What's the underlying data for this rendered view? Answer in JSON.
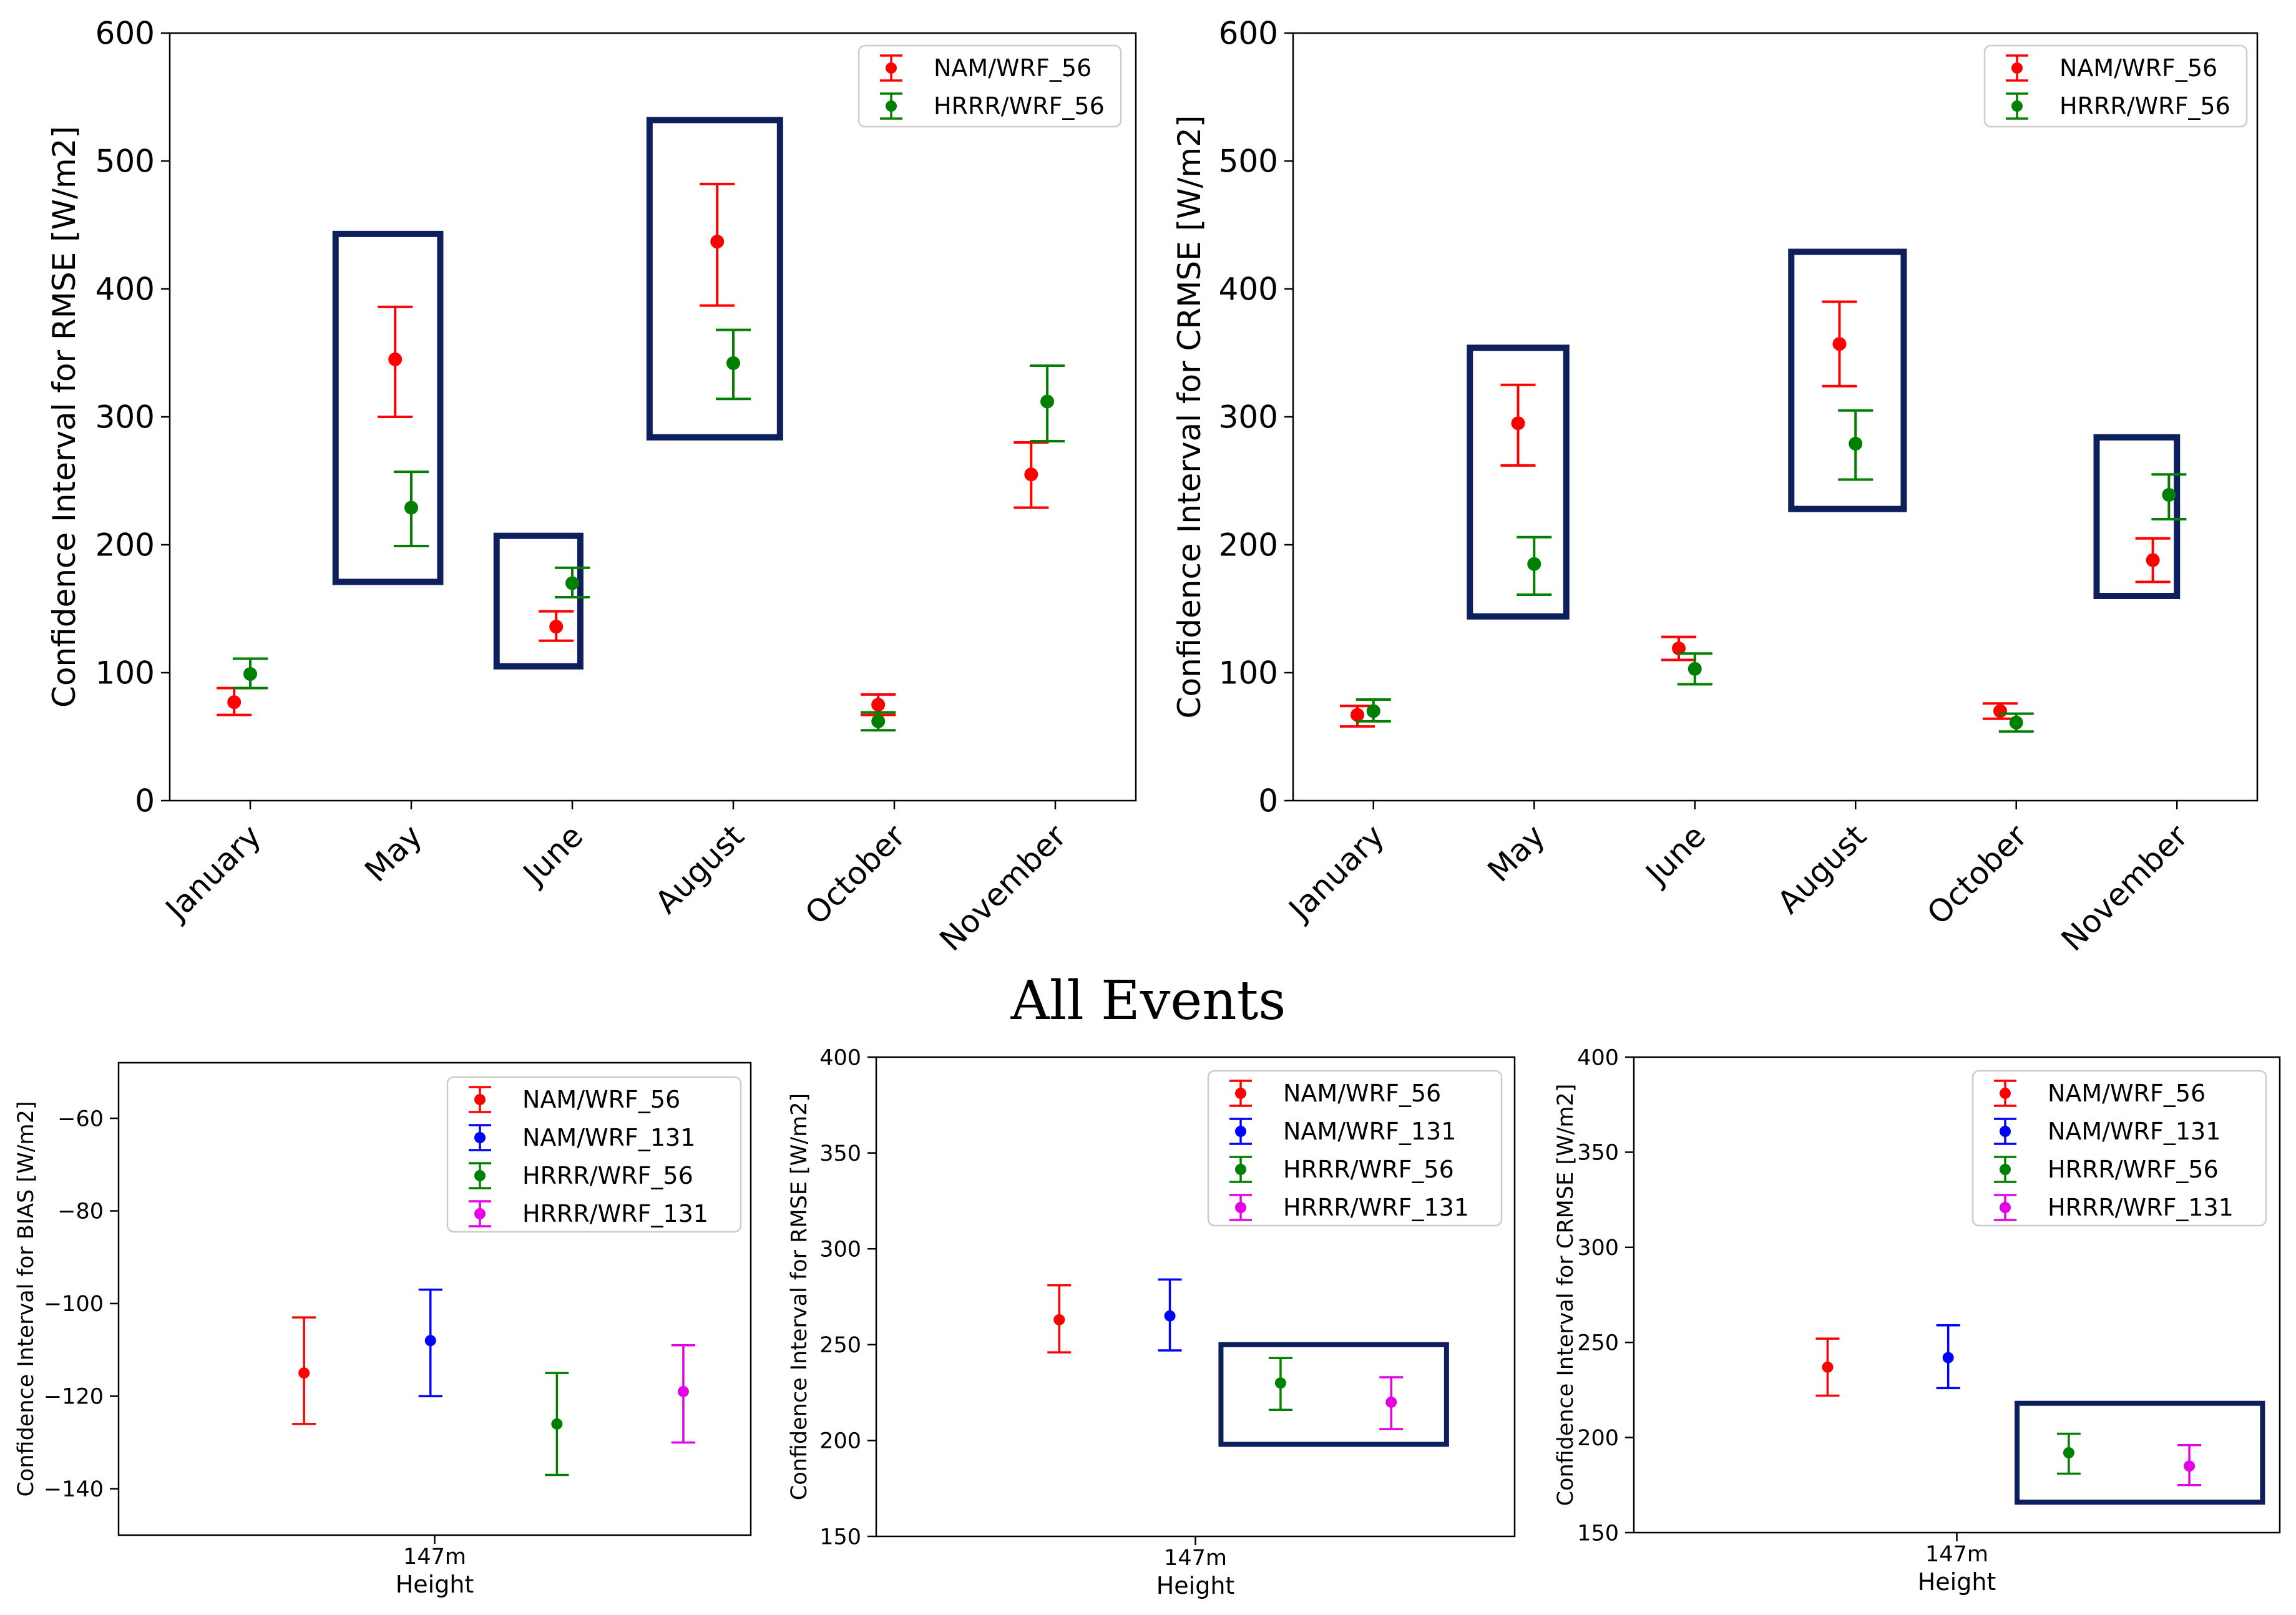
{
  "figure_title": "All Events",
  "colors": {
    "nam56": "#ff0000",
    "hrrr56": "#008000",
    "nam131": "#0000ff",
    "hrrr131": "#e600e6",
    "highlight_box": "#0d1f5c",
    "axis": "#000000"
  },
  "chart_data": [
    {
      "id": "top-left",
      "type": "errorbar",
      "title": "",
      "xlabel": "",
      "ylabel": "Confidence Interval for RMSE [W/m2]",
      "ylim": [
        0,
        600
      ],
      "yticks": [
        0,
        100,
        200,
        300,
        400,
        500,
        600
      ],
      "xlim": [
        -0.5,
        5.5
      ],
      "categories": [
        "January",
        "May",
        "June",
        "August",
        "October",
        "November"
      ],
      "legend_position": "top-right",
      "series": [
        {
          "name": "NAM/WRF_56",
          "color": "#ff0000",
          "x": [
            -0.1,
            0.9,
            1.9,
            2.9,
            3.9,
            4.85
          ],
          "values": [
            77,
            345,
            136,
            437,
            75,
            255
          ],
          "lower": [
            67,
            300,
            125,
            387,
            67,
            229
          ],
          "upper": [
            88,
            386,
            148,
            482,
            83,
            280
          ]
        },
        {
          "name": "HRRR/WRF_56",
          "color": "#008000",
          "x": [
            0.0,
            1.0,
            2.0,
            3.0,
            3.9,
            4.95
          ],
          "values": [
            99,
            229,
            170,
            342,
            62,
            312
          ],
          "lower": [
            88,
            199,
            159,
            314,
            55,
            281
          ],
          "upper": [
            111,
            257,
            182,
            368,
            69,
            340
          ]
        }
      ],
      "highlight_boxes": [
        {
          "x0": 0.53,
          "x1": 1.18,
          "y0": 171,
          "y1": 443
        },
        {
          "x0": 1.53,
          "x1": 2.05,
          "y0": 105,
          "y1": 207
        },
        {
          "x0": 2.48,
          "x1": 3.29,
          "y0": 284,
          "y1": 532
        }
      ]
    },
    {
      "id": "top-right",
      "type": "errorbar",
      "title": "",
      "xlabel": "",
      "ylabel": "Confidence Interval for CRMSE [W/m2]",
      "ylim": [
        0,
        600
      ],
      "yticks": [
        0,
        100,
        200,
        300,
        400,
        500,
        600
      ],
      "xlim": [
        -0.5,
        5.5
      ],
      "categories": [
        "January",
        "May",
        "June",
        "August",
        "October",
        "November"
      ],
      "legend_position": "top-right",
      "series": [
        {
          "name": "NAM/WRF_56",
          "color": "#ff0000",
          "x": [
            -0.1,
            0.9,
            1.9,
            2.9,
            3.9,
            4.85
          ],
          "values": [
            67,
            295,
            119,
            357,
            70,
            188
          ],
          "lower": [
            58,
            262,
            110,
            324,
            64,
            171
          ],
          "upper": [
            74,
            325,
            128,
            390,
            76,
            205
          ]
        },
        {
          "name": "HRRR/WRF_56",
          "color": "#008000",
          "x": [
            0.0,
            1.0,
            2.0,
            3.0,
            4.0,
            4.95
          ],
          "values": [
            70,
            185,
            103,
            279,
            61,
            239
          ],
          "lower": [
            62,
            161,
            91,
            251,
            54,
            220
          ],
          "upper": [
            79,
            206,
            115,
            305,
            68,
            255
          ]
        }
      ],
      "highlight_boxes": [
        {
          "x0": 0.6,
          "x1": 1.2,
          "y0": 144,
          "y1": 354
        },
        {
          "x0": 2.6,
          "x1": 3.3,
          "y0": 228,
          "y1": 429
        },
        {
          "x0": 4.5,
          "x1": 5.0,
          "y0": 160,
          "y1": 284
        }
      ]
    },
    {
      "id": "bottom-left",
      "type": "errorbar",
      "title": "",
      "xlabel": "Height",
      "ylabel": "Confidence Interval for BIAS [W/m2]",
      "ylim": [
        -150,
        -48
      ],
      "yticks": [
        -140,
        -120,
        -100,
        -80,
        -60
      ],
      "xlim": [
        -0.5,
        1.0
      ],
      "categories": [
        "147m"
      ],
      "category_x": [
        0.25
      ],
      "legend_position": "top-right",
      "series": [
        {
          "name": "NAM/WRF_56",
          "color": "#ff0000",
          "x": [
            -0.06
          ],
          "values": [
            -115
          ],
          "lower": [
            -126
          ],
          "upper": [
            -103
          ]
        },
        {
          "name": "NAM/WRF_131",
          "color": "#0000ff",
          "x": [
            0.24
          ],
          "values": [
            -108
          ],
          "lower": [
            -120
          ],
          "upper": [
            -97
          ]
        },
        {
          "name": "HRRR/WRF_56",
          "color": "#008000",
          "x": [
            0.54
          ],
          "values": [
            -126
          ],
          "lower": [
            -137
          ],
          "upper": [
            -115
          ]
        },
        {
          "name": "HRRR/WRF_131",
          "color": "#e600e6",
          "x": [
            0.84
          ],
          "values": [
            -119
          ],
          "lower": [
            -130
          ],
          "upper": [
            -109
          ]
        }
      ],
      "highlight_boxes": []
    },
    {
      "id": "bottom-middle",
      "type": "errorbar",
      "title": "",
      "xlabel": "Height",
      "ylabel": "Confidence Interval for RMSE [W/m2]",
      "ylim": [
        150,
        400
      ],
      "yticks": [
        150,
        200,
        250,
        300,
        350,
        400
      ],
      "xlim": [
        -0.5,
        1.0
      ],
      "categories": [
        "147m"
      ],
      "category_x": [
        0.25
      ],
      "legend_position": "top-right",
      "series": [
        {
          "name": "NAM/WRF_56",
          "color": "#ff0000",
          "x": [
            -0.07
          ],
          "values": [
            263
          ],
          "lower": [
            246
          ],
          "upper": [
            281
          ]
        },
        {
          "name": "NAM/WRF_131",
          "color": "#0000ff",
          "x": [
            0.19
          ],
          "values": [
            265
          ],
          "lower": [
            247
          ],
          "upper": [
            284
          ]
        },
        {
          "name": "HRRR/WRF_56",
          "color": "#008000",
          "x": [
            0.45
          ],
          "values": [
            230
          ],
          "lower": [
            216
          ],
          "upper": [
            243
          ]
        },
        {
          "name": "HRRR/WRF_131",
          "color": "#e600e6",
          "x": [
            0.71
          ],
          "values": [
            220
          ],
          "lower": [
            206
          ],
          "upper": [
            233
          ]
        }
      ],
      "highlight_boxes": [
        {
          "x0": 0.31,
          "x1": 0.84,
          "y0": 198,
          "y1": 250
        }
      ]
    },
    {
      "id": "bottom-right",
      "type": "errorbar",
      "title": "",
      "xlabel": "Height",
      "ylabel": "Confidence Interval for CRMSE [W/m2]",
      "ylim": [
        150,
        400
      ],
      "yticks": [
        150,
        200,
        250,
        300,
        350,
        400
      ],
      "xlim": [
        -0.5,
        1.0
      ],
      "categories": [
        "147m"
      ],
      "category_x": [
        0.25
      ],
      "legend_position": "top-right",
      "series": [
        {
          "name": "NAM/WRF_56",
          "color": "#ff0000",
          "x": [
            -0.05
          ],
          "values": [
            237
          ],
          "lower": [
            222
          ],
          "upper": [
            252
          ]
        },
        {
          "name": "NAM/WRF_131",
          "color": "#0000ff",
          "x": [
            0.23
          ],
          "values": [
            242
          ],
          "lower": [
            226
          ],
          "upper": [
            259
          ]
        },
        {
          "name": "HRRR/WRF_56",
          "color": "#008000",
          "x": [
            0.51
          ],
          "values": [
            192
          ],
          "lower": [
            181
          ],
          "upper": [
            202
          ]
        },
        {
          "name": "HRRR/WRF_131",
          "color": "#e600e6",
          "x": [
            0.79
          ],
          "values": [
            185
          ],
          "lower": [
            175
          ],
          "upper": [
            196
          ]
        }
      ],
      "highlight_boxes": [
        {
          "x0": 0.39,
          "x1": 0.96,
          "y0": 166,
          "y1": 218
        }
      ]
    }
  ]
}
